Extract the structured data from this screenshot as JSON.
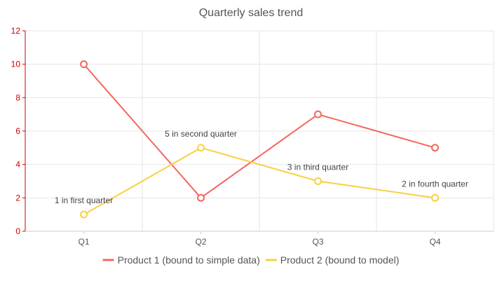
{
  "chart_data": {
    "type": "line",
    "title": "Quarterly sales trend",
    "categories": [
      "Q1",
      "Q2",
      "Q3",
      "Q4"
    ],
    "ylim": [
      0,
      12
    ],
    "yticks": [
      0,
      2,
      4,
      6,
      8,
      10,
      12
    ],
    "grid": true,
    "legend_position": "bottom",
    "series": [
      {
        "name": "Product 1 (bound to simple data)",
        "color": "#f4665c",
        "values": [
          10,
          2,
          7,
          5
        ],
        "labels": [
          "",
          "",
          "",
          ""
        ]
      },
      {
        "name": "Product 2 (bound to model)",
        "color": "#f9d03f",
        "values": [
          1,
          5,
          3,
          2
        ],
        "labels": [
          "1 in first quarter",
          "5 in second quarter",
          "3 in third quarter",
          "2 in fourth quarter"
        ]
      }
    ],
    "axis_color": "#cc0000"
  }
}
